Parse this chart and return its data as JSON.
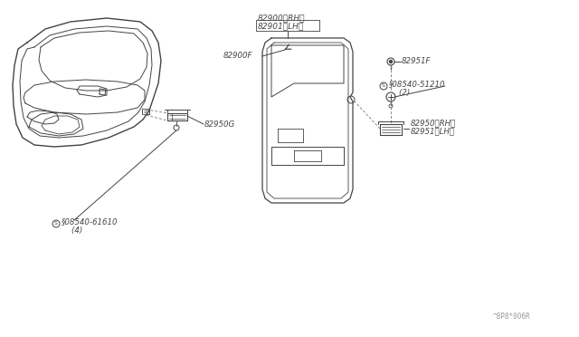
{
  "background_color": "#ffffff",
  "line_color": "#444444",
  "text_color": "#444444",
  "label_82950G": "82950G",
  "label_82900RH": "82900（RH）",
  "label_82901LH": "82901（LH）",
  "label_82900F": "82900F",
  "label_82951F": "82951F",
  "label_s51210": "§08540-51210",
  "label_s51210b": "    (2)",
  "label_82950RH": "82950（RH）",
  "label_82951LH": "82951（LH）",
  "label_s61610": "§08540-61610",
  "label_s61610b": "    (4)",
  "watermark": "^8P8*006R",
  "fig_width": 6.4,
  "fig_height": 3.72,
  "dpi": 100
}
